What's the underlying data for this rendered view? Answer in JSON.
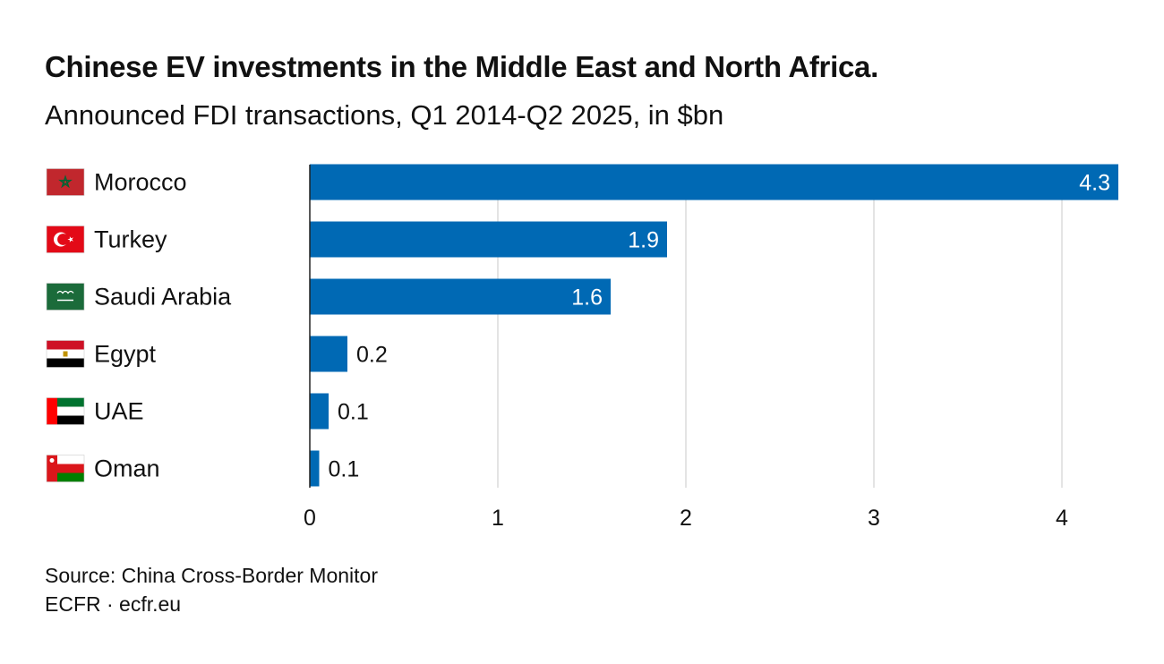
{
  "title": "Chinese EV investments in the Middle East and North Africa.",
  "subtitle": "Announced FDI transactions, Q1 2014-Q2 2025, in $bn",
  "footer": {
    "source": "Source: China Cross-Border Monitor",
    "credit": "ECFR · ecfr.eu"
  },
  "colors": {
    "bar": "#0069b4",
    "grid": "#dcdcdc",
    "axis": "#222222",
    "inside_label": "#ffffff",
    "outside_label": "#111111"
  },
  "chart_data": {
    "type": "bar",
    "orientation": "horizontal",
    "categories": [
      "Morocco",
      "Turkey",
      "Saudi Arabia",
      "Egypt",
      "UAE",
      "Oman"
    ],
    "flags": [
      "morocco-flag-icon",
      "turkey-flag-icon",
      "saudi-arabia-flag-icon",
      "egypt-flag-icon",
      "uae-flag-icon",
      "oman-flag-icon"
    ],
    "values": [
      4.3,
      1.9,
      1.6,
      0.2,
      0.1,
      0.05
    ],
    "value_labels": [
      "4.3",
      "1.9",
      "1.6",
      "0.2",
      "0.1",
      "0.1"
    ],
    "xlim": [
      0,
      4.3
    ],
    "xticks": [
      0,
      1,
      2,
      3,
      4
    ],
    "xtick_labels": [
      "0",
      "1",
      "2",
      "3",
      "4"
    ],
    "xlabel": "",
    "ylabel": "",
    "grid": true,
    "legend": "none"
  }
}
